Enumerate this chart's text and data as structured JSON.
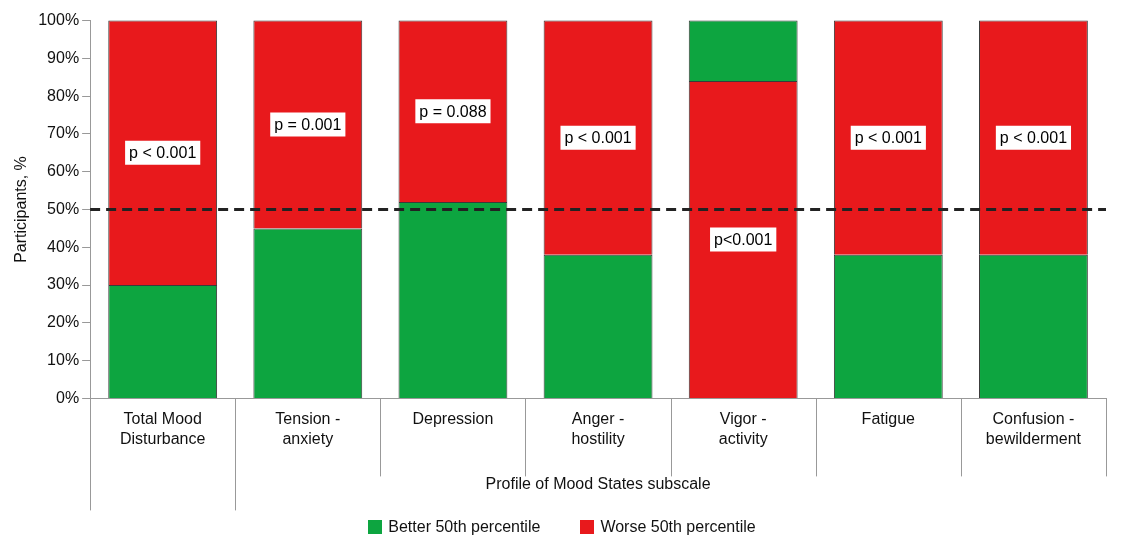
{
  "chart_data": {
    "type": "bar",
    "ylabel": "Participants, %",
    "xlabel": "Profile of Mood States subscale",
    "categories": [
      "Total Mood Disturbance",
      "Tension - anxiety",
      "Depression",
      "Anger - hostility",
      "Vigor - activity",
      "Fatigue",
      "Confusion - bewilderment"
    ],
    "series": [
      {
        "name": "Better 50th percentile",
        "color": "#0da540",
        "base": [
          0,
          0,
          0,
          0,
          84,
          0,
          0
        ],
        "values": [
          30,
          45,
          52,
          38,
          16,
          38,
          38
        ]
      },
      {
        "name": "Worse 50th percentile",
        "color": "#e8191c",
        "base": [
          30,
          45,
          52,
          38,
          0,
          38,
          38
        ],
        "values": [
          70,
          55,
          48,
          62,
          84,
          62,
          62
        ]
      }
    ],
    "ylim": [
      0,
      100
    ],
    "yticks": [
      {
        "value": 0,
        "label": "0%"
      },
      {
        "value": 10,
        "label": "10%"
      },
      {
        "value": 20,
        "label": "20%"
      },
      {
        "value": 30,
        "label": "30%"
      },
      {
        "value": 40,
        "label": "40%"
      },
      {
        "value": 50,
        "label": "50%"
      },
      {
        "value": 60,
        "label": "60%"
      },
      {
        "value": 70,
        "label": "70%"
      },
      {
        "value": 80,
        "label": "80%"
      },
      {
        "value": 90,
        "label": "90%"
      },
      {
        "value": 100,
        "label": "100%"
      }
    ],
    "grid": false,
    "legend": "bottom",
    "ref_lines": [
      {
        "axis": "y",
        "value": 50,
        "color": "#222222",
        "line_style": "dashed"
      }
    ],
    "annotations": [
      "p < 0.001",
      "p = 0.001",
      "p = 0.088",
      "p < 0.001",
      "p<0.001",
      "p < 0.001",
      "p < 0.001"
    ]
  }
}
